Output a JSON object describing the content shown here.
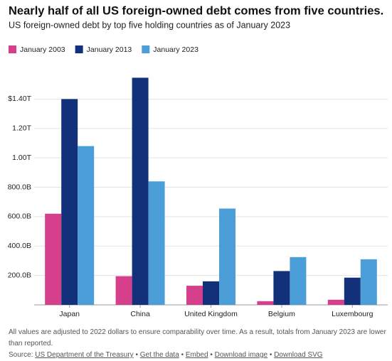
{
  "chart_data": {
    "type": "bar",
    "title": "Nearly half of all US foreign-owned debt comes from five countries.",
    "subtitle": "US foreign-owned debt by top five holding countries as of January 2023",
    "categories": [
      "Japan",
      "China",
      "United Kingdom",
      "Belgium",
      "Luxembourg"
    ],
    "series": [
      {
        "name": "January 2003",
        "color": "#d63f8c",
        "values": [
          620,
          195,
          130,
          25,
          35
        ]
      },
      {
        "name": "January 2013",
        "color": "#13317b",
        "values": [
          1400,
          1545,
          160,
          230,
          185
        ]
      },
      {
        "name": "January 2023",
        "color": "#4c9ed9",
        "values": [
          1080,
          840,
          655,
          325,
          310
        ]
      }
    ],
    "ylim": [
      0,
      1600
    ],
    "yticks": [
      {
        "value": 200,
        "label": "200.0B"
      },
      {
        "value": 400,
        "label": "400.0B"
      },
      {
        "value": 600,
        "label": "600.0B"
      },
      {
        "value": 800,
        "label": "800.0B"
      },
      {
        "value": 1000,
        "label": "1.00T"
      },
      {
        "value": 1200,
        "label": "1.20T"
      },
      {
        "value": 1400,
        "label": "$1.40T"
      }
    ],
    "grid": true,
    "legend": "top-left"
  },
  "footer": {
    "note": "All values are adjusted to 2022 dollars to ensure comparability over time. As a result, totals from January 2023 are lower than reported.",
    "source_label": "Source:",
    "separator": "•",
    "links": [
      "US Department of the Treasury",
      "Get the data",
      "Embed",
      "Download image",
      "Download SVG"
    ]
  }
}
